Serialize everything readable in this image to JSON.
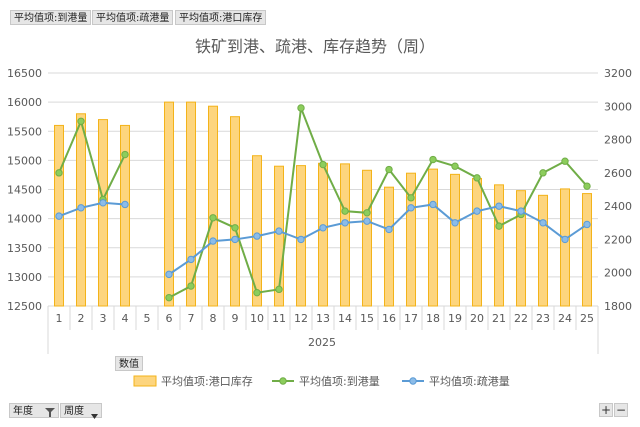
{
  "field_buttons": [
    "平均值项:到港量",
    "平均值项:疏港量",
    "平均值项:港口库存"
  ],
  "values_button": "数值",
  "bottom_filters": [
    {
      "label": "年度",
      "icon": "filter-icon"
    },
    {
      "label": "周度",
      "icon": "dropdown-icon"
    }
  ],
  "zoom_buttons": {
    "expand": "+",
    "collapse": "−"
  },
  "colors": {
    "bar_fill": "#fdd57e",
    "bar_stroke": "#f3b31a",
    "green_line": "#70ad47",
    "green_marker": "#8ccd5c",
    "blue_line": "#5b9bd5",
    "blue_marker": "#8cbce8",
    "gridline": "#d9d9d9",
    "axis_text": "#595959"
  },
  "chart_data": {
    "type": "bar+line",
    "title": "铁矿到港、疏港、库存趋势（周）",
    "group_label": "2025",
    "categories": [
      "1",
      "2",
      "3",
      "4",
      "5",
      "6",
      "7",
      "8",
      "9",
      "10",
      "11",
      "12",
      "13",
      "14",
      "15",
      "16",
      "17",
      "18",
      "19",
      "20",
      "21",
      "22",
      "23",
      "24",
      "25"
    ],
    "y_left": {
      "min": 12500,
      "max": 16500,
      "ticks": [
        12500,
        13000,
        13500,
        14000,
        14500,
        15000,
        15500,
        16000,
        16500
      ]
    },
    "y_right": {
      "min": 1800,
      "max": 3200,
      "ticks": [
        1800,
        2000,
        2200,
        2400,
        2600,
        2800,
        3000,
        3200
      ]
    },
    "grid": true,
    "legend_position": "bottom",
    "series": [
      {
        "name": "平均值项:港口库存",
        "type": "bar",
        "axis": "left",
        "values": [
          15600,
          15800,
          15700,
          15600,
          null,
          16000,
          16000,
          15930,
          15750,
          15080,
          14900,
          14910,
          14950,
          14940,
          14830,
          14540,
          14780,
          14850,
          14760,
          14690,
          14580,
          14480,
          14400,
          14510,
          14430
        ]
      },
      {
        "name": "平均值项:到港量",
        "type": "line",
        "axis": "right",
        "color_key": "green",
        "values": [
          2600,
          2910,
          2440,
          2710,
          null,
          1850,
          1920,
          2330,
          2270,
          1880,
          1900,
          2990,
          2650,
          2370,
          2360,
          2620,
          2450,
          2680,
          2640,
          2570,
          2280,
          2350,
          2600,
          2670,
          2520
        ]
      },
      {
        "name": "平均值项:疏港量",
        "type": "line",
        "axis": "right",
        "color_key": "blue",
        "values": [
          2340,
          2390,
          2420,
          2410,
          null,
          1990,
          2080,
          2190,
          2200,
          2220,
          2250,
          2200,
          2270,
          2300,
          2310,
          2260,
          2390,
          2410,
          2300,
          2370,
          2400,
          2370,
          2300,
          2200,
          2290
        ]
      }
    ]
  }
}
